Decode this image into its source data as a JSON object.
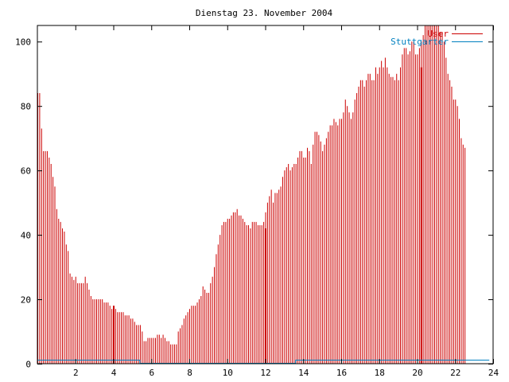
{
  "chart_data": {
    "type": "bar",
    "title": "Dienstag 23. November 2004",
    "xlabel": "",
    "ylabel": "",
    "xlim": [
      0,
      24
    ],
    "ylim": [
      0,
      105
    ],
    "x_ticks": [
      "2",
      "4",
      "6",
      "8",
      "10",
      "12",
      "14",
      "16",
      "18",
      "20",
      "22",
      "24"
    ],
    "y_ticks": [
      "0",
      "20",
      "40",
      "60",
      "80",
      "100"
    ],
    "grid": false,
    "legend_position": "top-right",
    "series": [
      {
        "name": "User",
        "color": "#cc0000",
        "x_start": 0,
        "x_step": 0.1,
        "values": [
          84,
          84,
          73,
          66,
          66,
          66,
          64,
          62,
          58,
          55,
          48,
          45,
          44,
          42,
          41,
          37,
          35,
          28,
          27,
          26,
          27,
          25,
          25,
          25,
          25,
          27,
          25,
          23,
          21,
          20,
          20,
          20,
          20,
          20,
          20,
          19,
          19,
          19,
          18,
          17,
          17,
          17,
          16,
          16,
          16,
          16,
          15,
          15,
          15,
          14,
          14,
          13,
          12,
          12,
          12,
          10,
          7,
          7,
          8,
          8,
          8,
          8,
          8,
          9,
          9,
          8,
          9,
          8,
          7,
          7,
          6,
          6,
          6,
          6,
          10,
          11,
          12,
          14,
          15,
          16,
          17,
          18,
          18,
          18,
          19,
          20,
          21,
          24,
          23,
          22,
          22,
          25,
          27,
          30,
          34,
          37,
          40,
          43,
          44,
          44,
          45,
          45,
          46,
          47,
          47,
          48,
          46,
          46,
          45,
          44,
          43,
          43,
          42,
          44,
          44,
          44,
          43,
          43,
          43,
          44,
          47,
          50,
          52,
          54,
          50,
          53,
          53,
          54,
          55,
          58,
          60,
          61,
          62,
          60,
          61,
          62,
          62,
          64,
          66,
          66,
          64,
          64,
          67,
          66,
          62,
          68,
          72,
          72,
          71,
          69,
          66,
          68,
          70,
          72,
          74,
          74,
          76,
          75,
          74,
          76,
          76,
          78,
          82,
          80,
          78,
          76,
          78,
          82,
          84,
          86,
          88,
          88,
          86,
          88,
          90,
          90,
          88,
          88,
          92,
          90,
          92,
          94,
          92,
          95,
          92,
          90,
          89,
          89,
          88,
          90,
          88,
          92,
          96,
          98,
          98,
          96,
          97,
          100,
          100,
          96,
          96,
          98,
          100,
          102,
          105,
          105,
          105,
          105,
          105,
          105,
          105,
          105,
          103,
          103,
          100,
          95,
          90,
          88,
          86,
          82,
          82,
          80,
          76,
          70,
          68,
          67
        ]
      },
      {
        "name": "Stuttgarter",
        "color": "#0080c0",
        "x_start": 0,
        "x_step": 0.1,
        "values": [
          1,
          1,
          1,
          1,
          1,
          1,
          1,
          1,
          1,
          1,
          1,
          1,
          1,
          1,
          1,
          1,
          1,
          1,
          1,
          1,
          1,
          1,
          1,
          1,
          1,
          1,
          1,
          1,
          1,
          1,
          1,
          1,
          1,
          1,
          1,
          1,
          1,
          1,
          1,
          1,
          1,
          1,
          1,
          1,
          1,
          1,
          1,
          1,
          1,
          1,
          1,
          1,
          1,
          1,
          0,
          0,
          0,
          0,
          0,
          0,
          0,
          0,
          0,
          0,
          0,
          0,
          0,
          0,
          0,
          0,
          0,
          0,
          0,
          0,
          0,
          0,
          0,
          0,
          0,
          0,
          0,
          0,
          0,
          0,
          0,
          0,
          0,
          0,
          0,
          0,
          0,
          0,
          0,
          0,
          0,
          0,
          0,
          0,
          0,
          0,
          0,
          0,
          0,
          0,
          0,
          0,
          0,
          0,
          0,
          0,
          0,
          0,
          0,
          0,
          0,
          0,
          0,
          0,
          0,
          0,
          0,
          0,
          0,
          0,
          0,
          0,
          0,
          0,
          0,
          0,
          0,
          0,
          0,
          0,
          0,
          0,
          1,
          1,
          1,
          1,
          1,
          1,
          1,
          1,
          1,
          1,
          1,
          1,
          1,
          1,
          1,
          1,
          1,
          1,
          1,
          1,
          1,
          1,
          1,
          1,
          1,
          1,
          1,
          1,
          1,
          1,
          1,
          1,
          1,
          1,
          1,
          1,
          1,
          1,
          1,
          1,
          1,
          1,
          1,
          1,
          1,
          1,
          1,
          1,
          1,
          1,
          1,
          1,
          1,
          1,
          1,
          1,
          1,
          1,
          1,
          1,
          1,
          1,
          1,
          1,
          1,
          1,
          1,
          1,
          1,
          1,
          1,
          1,
          1,
          1,
          1,
          1,
          1,
          1,
          1,
          1,
          1,
          1,
          1,
          1,
          1,
          1,
          1,
          1,
          1,
          1,
          1,
          1,
          1,
          1,
          1,
          1,
          1,
          1,
          1,
          1,
          1,
          1
        ]
      }
    ],
    "spikes": [
      {
        "series": "User",
        "x": 4.0,
        "y": 18
      },
      {
        "series": "User",
        "x": 12.0,
        "y": 42
      },
      {
        "series": "User",
        "x": 20.2,
        "y": 92
      }
    ]
  }
}
